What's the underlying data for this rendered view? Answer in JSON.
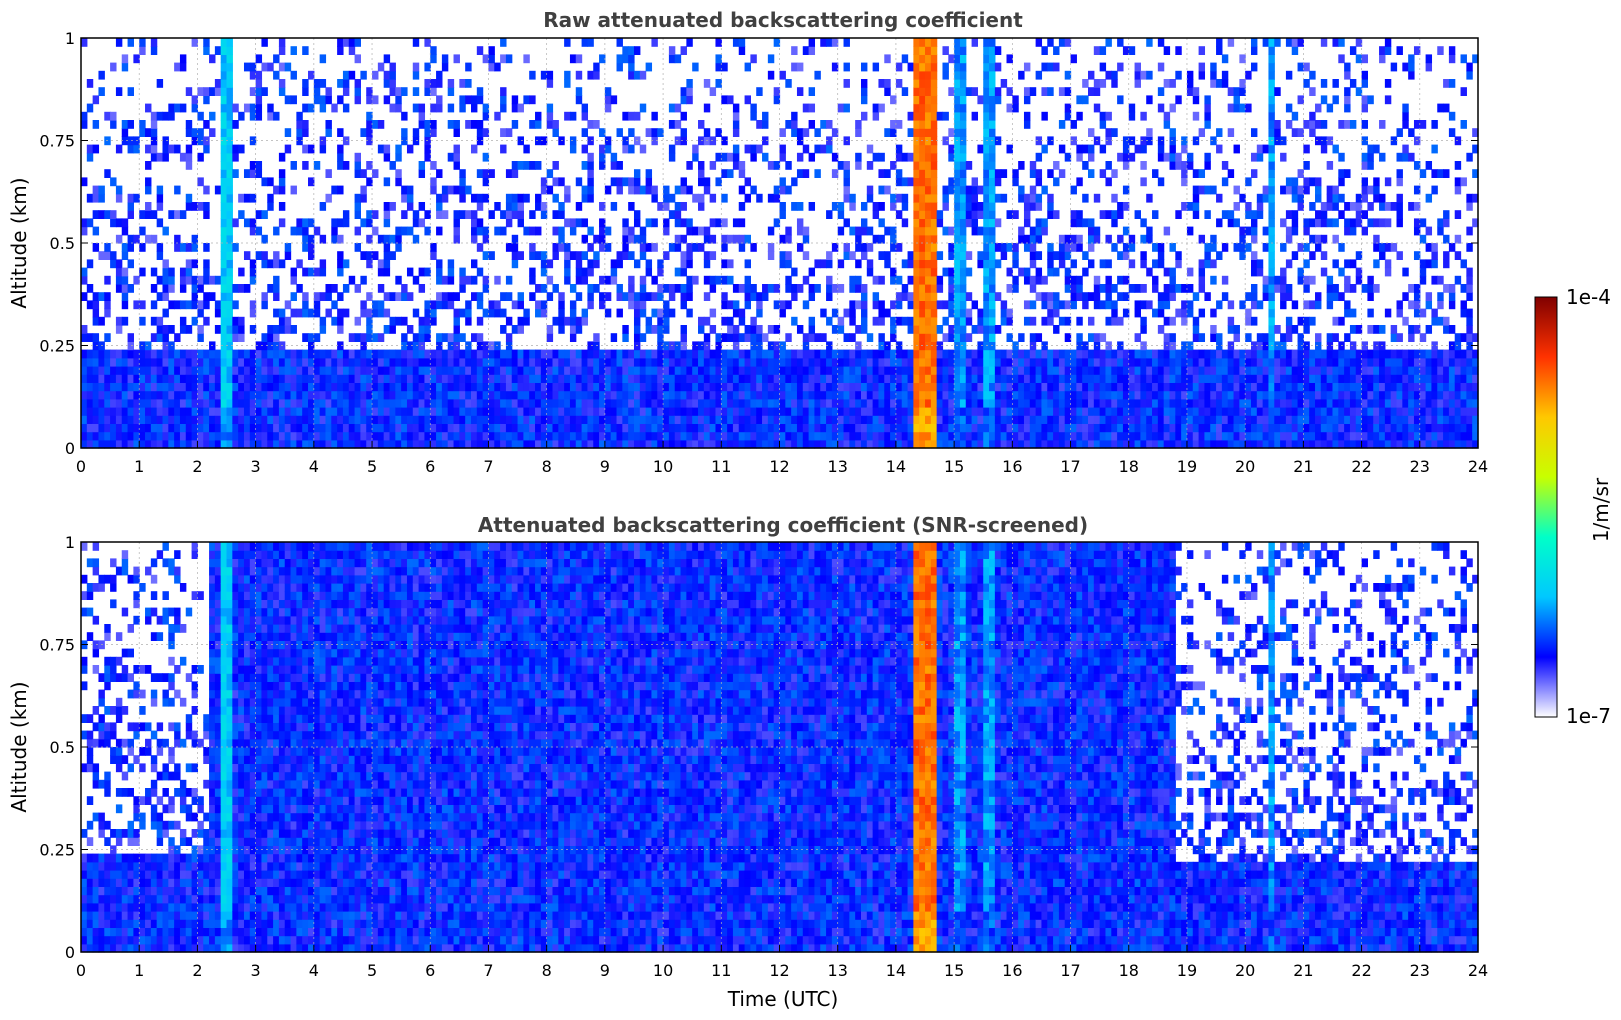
{
  "chart_data": [
    {
      "type": "heatmap",
      "title": "Raw attenuated backscattering coefficient",
      "xlabel": "",
      "ylabel": "Altitude (km)",
      "xlim": [
        0,
        24
      ],
      "ylim": [
        0,
        1
      ],
      "x_ticks": [
        "0",
        "1",
        "2",
        "3",
        "4",
        "5",
        "6",
        "7",
        "8",
        "9",
        "10",
        "11",
        "12",
        "13",
        "14",
        "15",
        "16",
        "17",
        "18",
        "19",
        "20",
        "21",
        "22",
        "23",
        "24"
      ],
      "y_ticks": [
        "0",
        "0.25",
        "0.5",
        "0.75",
        "1"
      ],
      "y_tick_values": [
        0,
        0.25,
        0.5,
        0.75,
        1
      ],
      "grid": true,
      "features": [
        {
          "kind": "boundary_layer",
          "x_start": 0,
          "x_end": 24,
          "top_altitude": 0.25
        },
        {
          "kind": "cloud",
          "x_center": 2.5,
          "width_h": 0.15,
          "intensity": 0.35
        },
        {
          "kind": "cloud",
          "x_center": 14.5,
          "width_h": 0.4,
          "intensity": 0.85
        },
        {
          "kind": "cloud",
          "x_center": 15.1,
          "width_h": 0.12,
          "intensity": 0.3
        },
        {
          "kind": "cloud",
          "x_center": 15.6,
          "width_h": 0.12,
          "intensity": 0.3
        },
        {
          "kind": "cloud",
          "x_center": 20.45,
          "width_h": 0.1,
          "intensity": 0.3
        }
      ]
    },
    {
      "type": "heatmap",
      "title": "Attenuated backscattering coefficient (SNR-screened)",
      "xlabel": "Time (UTC)",
      "ylabel": "Altitude (km)",
      "xlim": [
        0,
        24
      ],
      "ylim": [
        0,
        1
      ],
      "x_ticks": [
        "0",
        "1",
        "2",
        "3",
        "4",
        "5",
        "6",
        "7",
        "8",
        "9",
        "10",
        "11",
        "12",
        "13",
        "14",
        "15",
        "16",
        "17",
        "18",
        "19",
        "20",
        "21",
        "22",
        "23",
        "24"
      ],
      "y_ticks": [
        "0",
        "0.25",
        "0.5",
        "0.75",
        "1"
      ],
      "y_tick_values": [
        0,
        0.25,
        0.5,
        0.75,
        1
      ],
      "grid": true,
      "features": [
        {
          "kind": "boundary_layer",
          "x_start": 0,
          "x_end": 2.2,
          "top_altitude": 0.24
        },
        {
          "kind": "boundary_layer",
          "x_start": 2.2,
          "x_end": 18.8,
          "top_altitude": 1.0
        },
        {
          "kind": "boundary_layer",
          "x_start": 18.8,
          "x_end": 24,
          "top_altitude": 0.22
        },
        {
          "kind": "cloud",
          "x_center": 2.5,
          "width_h": 0.15,
          "intensity": 0.35
        },
        {
          "kind": "cloud",
          "x_center": 14.5,
          "width_h": 0.4,
          "intensity": 0.85
        },
        {
          "kind": "cloud",
          "x_center": 15.1,
          "width_h": 0.12,
          "intensity": 0.3
        },
        {
          "kind": "cloud",
          "x_center": 15.6,
          "width_h": 0.12,
          "intensity": 0.3
        },
        {
          "kind": "cloud",
          "x_center": 20.45,
          "width_h": 0.08,
          "intensity": 0.3
        }
      ]
    }
  ],
  "colorbar": {
    "min_label": "1e-7",
    "max_label": "1e-4",
    "unit_label": "1/m/sr",
    "colormap": [
      "#ffffff",
      "#0000ff",
      "#00c8ff",
      "#00ffc8",
      "#c8ff00",
      "#ffc800",
      "#ff3200",
      "#800000"
    ]
  }
}
